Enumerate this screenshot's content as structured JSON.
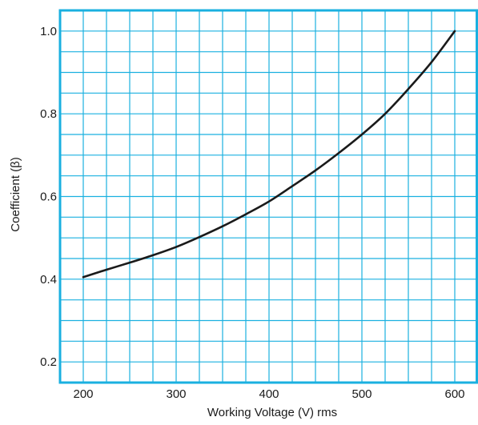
{
  "chart_data": {
    "type": "line",
    "title": "",
    "xlabel": "Working Voltage (V) rms",
    "ylabel": "Coefficient (β)",
    "xlim": [
      175,
      625
    ],
    "ylim": [
      0.15,
      1.05
    ],
    "xticks": [
      200,
      300,
      400,
      500,
      600
    ],
    "yticks": [
      0.2,
      0.4,
      0.6,
      0.8,
      1.0
    ],
    "xtick_labels": [
      "200",
      "300",
      "400",
      "500",
      "600"
    ],
    "ytick_labels": [
      "0.2",
      "0.4",
      "0.6",
      "0.8",
      "1.0"
    ],
    "x_grid_step": 25,
    "y_grid_step": 0.05,
    "grid": true,
    "legend": "none",
    "colors": {
      "grid": "#1ab0e0",
      "frame": "#1ab0e0",
      "line": "#1a1a1a"
    },
    "series": [
      {
        "x": [
          200,
          225,
          250,
          275,
          300,
          325,
          350,
          375,
          400,
          425,
          450,
          475,
          500,
          525,
          550,
          575,
          600
        ],
        "values": [
          0.405,
          0.423,
          0.44,
          0.458,
          0.478,
          0.502,
          0.528,
          0.557,
          0.588,
          0.625,
          0.663,
          0.705,
          0.75,
          0.8,
          0.86,
          0.925,
          1.0
        ]
      }
    ]
  }
}
